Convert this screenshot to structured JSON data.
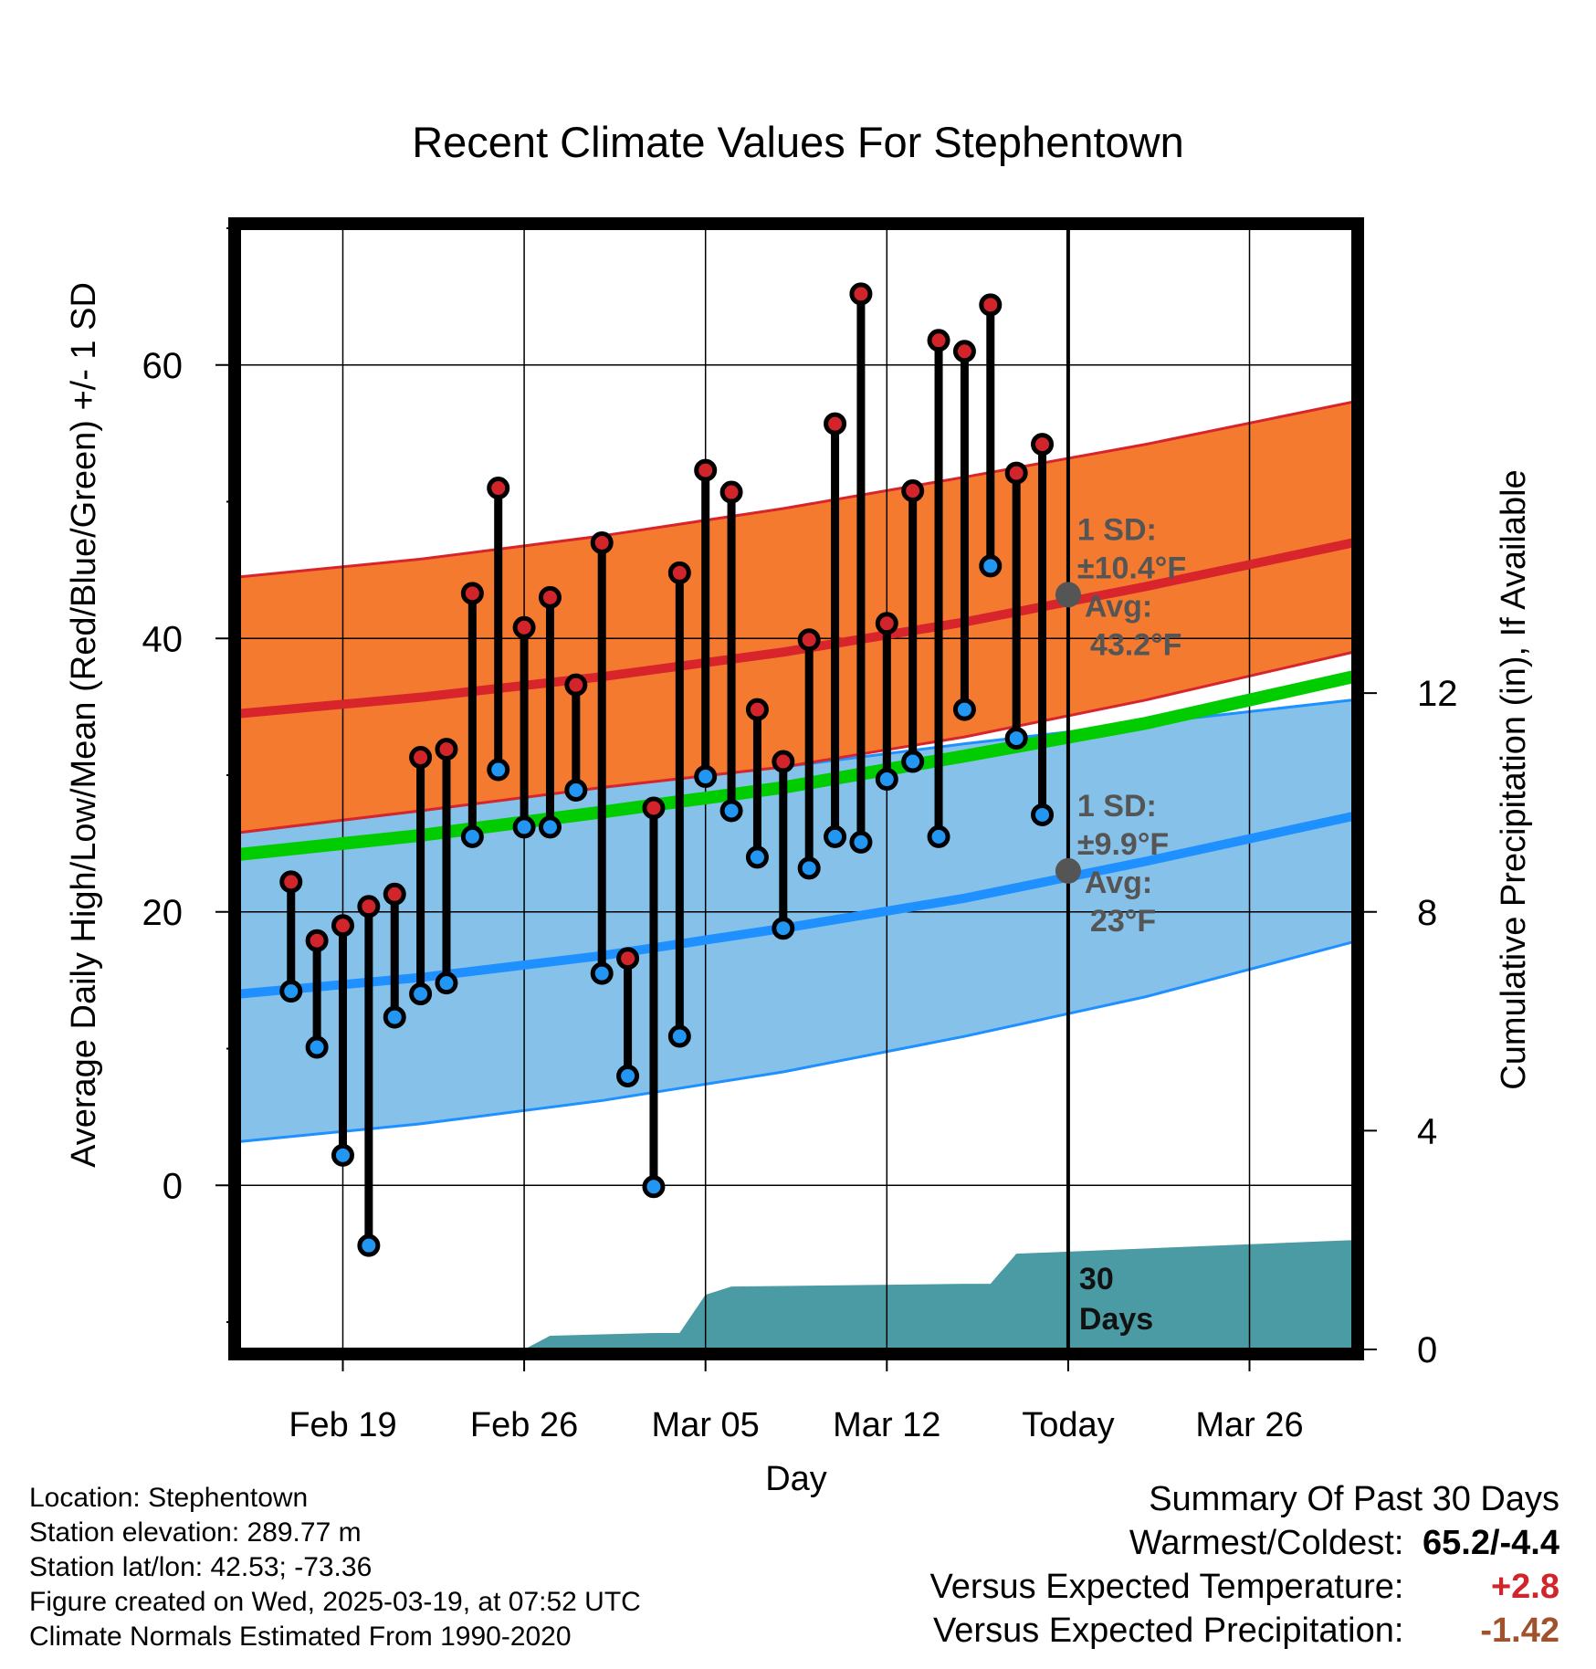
{
  "chart_data": {
    "type": "line",
    "title": "Recent Climate Values For Stephentown",
    "xlabel": "Day",
    "ylabel": "Average Daily High/Low/Mean (Red/Blue/Green) +/- 1 SD",
    "y2label": "Cumulative Precipitation (in), If Available",
    "ylim": [
      -12,
      70
    ],
    "yticks": [
      0,
      20,
      40,
      60
    ],
    "y2lim": [
      0,
      20.5
    ],
    "y2ticks": [
      0,
      4,
      8,
      12
    ],
    "xlim": [
      "2025-02-15",
      "2025-03-30"
    ],
    "xticks": [
      {
        "date": "2025-02-19",
        "label": "Feb 19"
      },
      {
        "date": "2025-02-26",
        "label": "Feb 26"
      },
      {
        "date": "2025-03-05",
        "label": "Mar 05"
      },
      {
        "date": "2025-03-12",
        "label": "Mar 12"
      },
      {
        "date": "2025-03-19",
        "label": "Today"
      },
      {
        "date": "2025-03-26",
        "label": "Mar 26"
      }
    ],
    "today": "2025-03-19",
    "grid": true,
    "normals": {
      "dates": [
        "2025-02-15",
        "2025-02-22",
        "2025-03-01",
        "2025-03-08",
        "2025-03-15",
        "2025-03-22",
        "2025-03-30"
      ],
      "high_mean": [
        34.5,
        35.7,
        37.2,
        39.0,
        41.2,
        43.8,
        47.0
      ],
      "high_upper": [
        44.5,
        45.8,
        47.5,
        49.5,
        51.8,
        54.2,
        57.3
      ],
      "high_lower": [
        25.8,
        27.4,
        29.1,
        30.6,
        32.8,
        35.5,
        39.0
      ],
      "low_mean": [
        14.0,
        15.2,
        16.8,
        18.8,
        21.0,
        23.7,
        27.0
      ],
      "low_upper": [
        25.8,
        27.4,
        29.1,
        30.6,
        32.3,
        33.8,
        35.5
      ],
      "low_lower": [
        3.2,
        4.5,
        6.2,
        8.3,
        10.9,
        13.8,
        17.8
      ],
      "mean_mean": [
        24.2,
        25.6,
        27.3,
        29.1,
        31.4,
        33.8,
        37.2
      ]
    },
    "observed": {
      "dates": [
        "2025-02-17",
        "2025-02-18",
        "2025-02-19",
        "2025-02-20",
        "2025-02-21",
        "2025-02-22",
        "2025-02-23",
        "2025-02-24",
        "2025-02-25",
        "2025-02-26",
        "2025-02-27",
        "2025-02-28",
        "2025-03-01",
        "2025-03-02",
        "2025-03-03",
        "2025-03-04",
        "2025-03-05",
        "2025-03-06",
        "2025-03-07",
        "2025-03-08",
        "2025-03-09",
        "2025-03-10",
        "2025-03-11",
        "2025-03-12",
        "2025-03-13",
        "2025-03-14",
        "2025-03-15",
        "2025-03-16",
        "2025-03-17",
        "2025-03-18"
      ],
      "high": [
        22.2,
        17.9,
        19.0,
        20.4,
        21.3,
        31.3,
        31.9,
        43.3,
        51.0,
        40.8,
        43.0,
        36.6,
        47.0,
        16.6,
        27.6,
        44.8,
        52.3,
        50.7,
        34.8,
        31.0,
        39.9,
        55.7,
        65.2,
        41.1,
        50.8,
        61.8,
        61.0,
        64.4,
        52.1,
        54.2
      ],
      "low": [
        14.2,
        10.1,
        2.2,
        -4.4,
        12.3,
        14.0,
        14.8,
        25.5,
        30.4,
        26.2,
        26.2,
        28.9,
        15.5,
        8.0,
        -0.1,
        10.9,
        29.9,
        27.4,
        24.0,
        18.8,
        23.2,
        25.5,
        25.1,
        29.7,
        31.0,
        25.5,
        34.8,
        45.3,
        32.7,
        27.1
      ]
    },
    "precip": {
      "dates": [
        "2025-02-26",
        "2025-02-27",
        "2025-03-03",
        "2025-03-04",
        "2025-03-05",
        "2025-03-06",
        "2025-03-15",
        "2025-03-16",
        "2025-03-17",
        "2025-03-30"
      ],
      "cumulative": [
        0,
        0.25,
        0.3,
        0.3,
        1.0,
        1.15,
        1.2,
        1.2,
        1.75,
        2.0
      ]
    },
    "annotations": [
      {
        "date": "2025-03-19",
        "value": 43.2,
        "lines": [
          "1 SD:",
          "±10.4°F",
          "Avg:",
          "43.2°F"
        ]
      },
      {
        "date": "2025-03-19",
        "value": 23.0,
        "lines": [
          "1 SD:",
          "±9.9°F",
          "Avg:",
          "23°F"
        ]
      }
    ],
    "precip_label": [
      "30",
      "Days"
    ],
    "colors": {
      "high_band": "#f47a30",
      "high_line": "#d8242b",
      "low_band": "#85c1e9",
      "low_line": "#1e90ff",
      "mean_line": "#00cc00",
      "precip": "#4a9ba3",
      "high_dot": "#d1242b",
      "low_dot": "#2196f3",
      "annotation": "#555555"
    }
  },
  "footer": {
    "location": "Location: Stephentown",
    "elevation": "Station elevation: 289.77 m",
    "latlon": "Station lat/lon: 42.53; -73.36",
    "created": "Figure created on Wed, 2025-03-19, at 07:52 UTC",
    "normals": "Climate Normals Estimated From 1990-2020"
  },
  "summary": {
    "title": "Summary Of Past 30 Days",
    "warm_label": "Warmest/Coldest:",
    "warm_value": "65.2/-4.4",
    "temp_label": "Versus Expected Temperature:",
    "temp_value": "+2.8",
    "temp_color": "#d1242b",
    "precip_label": "Versus Expected Precipitation:",
    "precip_value": "-1.42",
    "precip_color": "#a0522d"
  }
}
